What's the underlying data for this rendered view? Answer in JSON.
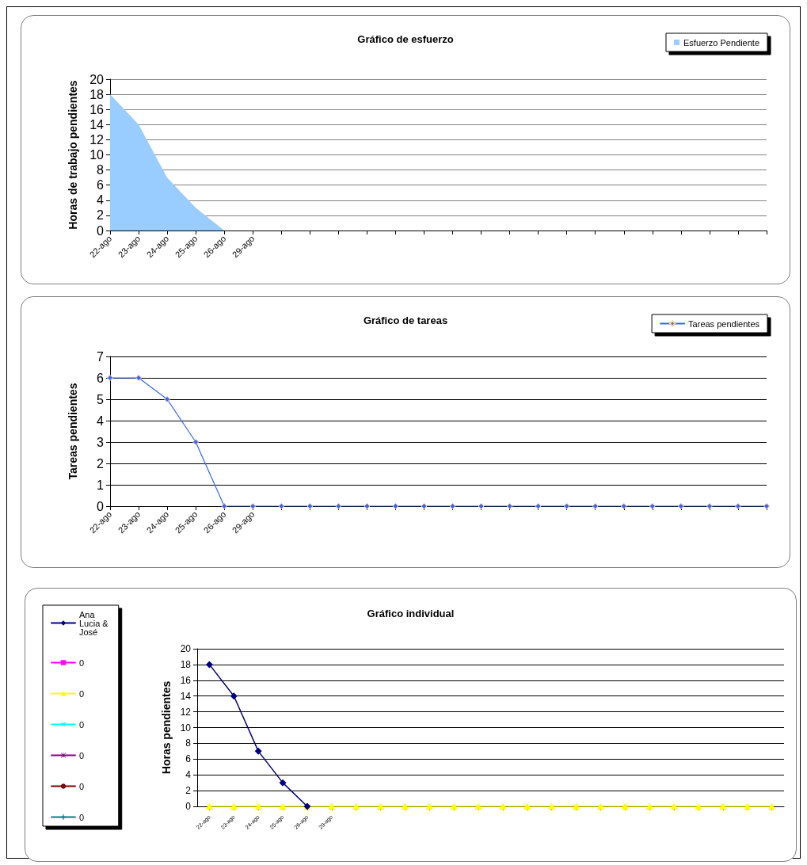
{
  "chart_data": [
    {
      "type": "area",
      "title": "Gráfico de esfuerzo",
      "ylabel": "Horas de trabajo pendientes",
      "categories": [
        "22-ago",
        "23-ago",
        "24-ago",
        "25-ago",
        "26-ago",
        "29-ago",
        null,
        null,
        null,
        null,
        null,
        null,
        null,
        null,
        null,
        null,
        null,
        null,
        null,
        null,
        null,
        null,
        null,
        null
      ],
      "series": [
        {
          "name": "Esfuerzo Pendiente",
          "color": "#99ccff",
          "values": [
            18,
            14,
            7,
            3,
            0,
            null,
            null,
            null,
            null,
            null,
            null,
            null,
            null,
            null,
            null,
            null,
            null,
            null,
            null,
            null,
            null,
            null,
            null,
            null
          ]
        }
      ],
      "ylim": [
        0,
        20
      ],
      "yticks": [
        0,
        2,
        4,
        6,
        8,
        10,
        12,
        14,
        16,
        18,
        20
      ],
      "grid": "y",
      "legend": "top right"
    },
    {
      "type": "line",
      "title": "Gráfico de tareas",
      "ylabel": "Tareas pendientes",
      "categories": [
        "22-ago",
        "23-ago",
        "24-ago",
        "25-ago",
        "26-ago",
        "29-ago",
        null,
        null,
        null,
        null,
        null,
        null,
        null,
        null,
        null,
        null,
        null,
        null,
        null,
        null,
        null,
        null,
        null,
        null
      ],
      "series": [
        {
          "name": "Tareas pendientes",
          "color": "#3366ff",
          "marker": "diamond",
          "values": [
            6,
            6,
            5,
            3,
            0,
            0,
            0,
            0,
            0,
            0,
            0,
            0,
            0,
            0,
            0,
            0,
            0,
            0,
            0,
            0,
            0,
            0,
            0,
            0
          ]
        }
      ],
      "ylim": [
        0,
        7
      ],
      "yticks": [
        0,
        1,
        2,
        3,
        4,
        5,
        6,
        7
      ],
      "grid": "y",
      "legend": "top right"
    },
    {
      "type": "line",
      "title": "Gráfico individual",
      "ylabel": "Horas pendientes",
      "categories": [
        "22-ago",
        "23-ago",
        "24-ago",
        "25-ago",
        "26-ago",
        "29-ago",
        null,
        null,
        null,
        null,
        null,
        null,
        null,
        null,
        null,
        null,
        null,
        null,
        null,
        null,
        null,
        null,
        null,
        null
      ],
      "series": [
        {
          "name": "Ana Lucia & José",
          "color": "#000080",
          "marker": "diamond",
          "values": [
            18,
            14,
            7,
            3,
            0,
            null,
            null,
            null,
            null,
            null,
            null,
            null,
            null,
            null,
            null,
            null,
            null,
            null,
            null,
            null,
            null,
            null,
            null,
            null
          ]
        },
        {
          "name": "0",
          "color": "#ff00ff",
          "marker": "square",
          "values": [
            null,
            null,
            null,
            null,
            null,
            null,
            null,
            null,
            null,
            null,
            null,
            null,
            null,
            null,
            null,
            null,
            null,
            null,
            null,
            null,
            null,
            null,
            null,
            null
          ]
        },
        {
          "name": "0",
          "color": "#ffff00",
          "marker": "triangle",
          "values": [
            0,
            0,
            0,
            0,
            0,
            0,
            0,
            0,
            0,
            0,
            0,
            0,
            0,
            0,
            0,
            0,
            0,
            0,
            0,
            0,
            0,
            0,
            0,
            0
          ]
        },
        {
          "name": "0",
          "color": "#00ffff",
          "marker": "cross",
          "values": [
            null,
            null,
            null,
            null,
            null,
            null,
            null,
            null,
            null,
            null,
            null,
            null,
            null,
            null,
            null,
            null,
            null,
            null,
            null,
            null,
            null,
            null,
            null,
            null
          ]
        },
        {
          "name": "0",
          "color": "#800080",
          "marker": "star",
          "values": [
            null,
            null,
            null,
            null,
            null,
            null,
            null,
            null,
            null,
            null,
            null,
            null,
            null,
            null,
            null,
            null,
            null,
            null,
            null,
            null,
            null,
            null,
            null,
            null
          ]
        },
        {
          "name": "0",
          "color": "#800000",
          "marker": "circle",
          "values": [
            null,
            null,
            null,
            null,
            null,
            null,
            null,
            null,
            null,
            null,
            null,
            null,
            null,
            null,
            null,
            null,
            null,
            null,
            null,
            null,
            null,
            null,
            null,
            null
          ]
        },
        {
          "name": "0",
          "color": "#008080",
          "marker": "plus",
          "values": [
            null,
            null,
            null,
            null,
            null,
            null,
            null,
            null,
            null,
            null,
            null,
            null,
            null,
            null,
            null,
            null,
            null,
            null,
            null,
            null,
            null,
            null,
            null,
            null
          ]
        }
      ],
      "ylim": [
        0,
        20
      ],
      "yticks": [
        0,
        2,
        4,
        6,
        8,
        10,
        12,
        14,
        16,
        18,
        20
      ],
      "grid": "y",
      "legend": "left"
    }
  ]
}
